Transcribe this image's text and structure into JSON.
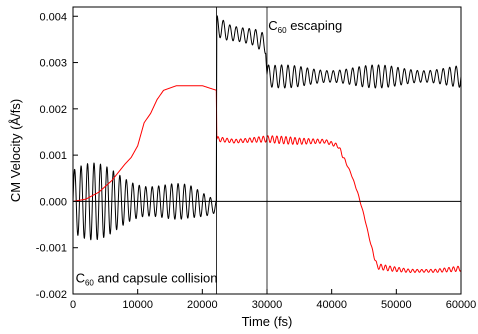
{
  "chart_data": {
    "type": "line",
    "title": "",
    "xlabel": "Time (fs)",
    "ylabel": "CM Velocity (Å/fs)",
    "xlim": [
      0,
      60000
    ],
    "ylim": [
      -0.002,
      0.0042
    ],
    "xticks": [
      "0",
      "10000",
      "20000",
      "30000",
      "40000",
      "50000",
      "60000"
    ],
    "yticks": [
      "-0.002",
      "-0.001",
      "0.000",
      "0.001",
      "0.002",
      "0.003",
      "0.004"
    ],
    "grid": false,
    "reference_lines": {
      "horizontal_y": 0.0,
      "vertical_x": [
        22200,
        30000
      ]
    },
    "annotations": [
      {
        "x": 30200,
        "y": 0.0037,
        "base": "C",
        "sub": "60",
        "rest": " escaping"
      },
      {
        "x": 400,
        "y": -0.00175,
        "base": "C",
        "sub": "60",
        "rest": " and capsule collision"
      }
    ],
    "series": [
      {
        "color": "#000000",
        "oscillation": {
          "period": 1000,
          "envelope": [
            [
              0,
              0.0009
            ],
            [
              10000,
              0.0007
            ],
            [
              14000,
              0.0005
            ],
            [
              22200,
              0.0002
            ],
            [
              22300,
              0.00035
            ],
            [
              30000,
              0.00025
            ]
          ]
        },
        "points": [
          [
            0,
            0.0
          ],
          [
            3000,
            0.0
          ],
          [
            6000,
            0.0
          ],
          [
            9000,
            0.0
          ],
          [
            12000,
            0.0
          ],
          [
            15000,
            0.0
          ],
          [
            18000,
            0.0
          ],
          [
            21000,
            -0.0001
          ],
          [
            22199,
            -0.0001
          ],
          [
            22201,
            0.0038
          ],
          [
            24000,
            0.00365
          ],
          [
            26000,
            0.0036
          ],
          [
            28000,
            0.00355
          ],
          [
            29800,
            0.0034
          ],
          [
            30000,
            0.00275
          ],
          [
            30500,
            0.0027
          ],
          [
            35000,
            0.0027
          ],
          [
            45000,
            0.0027
          ],
          [
            60000,
            0.0027
          ]
        ]
      },
      {
        "color": "#ff0000",
        "oscillation": {
          "period": 700,
          "envelope": [
            [
              0,
              0.0
            ],
            [
              22200,
              0.0
            ],
            [
              22300,
              8e-05
            ],
            [
              41500,
              8e-05
            ],
            [
              42500,
              2e-05
            ],
            [
              46000,
              1e-05
            ],
            [
              47000,
              6e-05
            ],
            [
              60000,
              6e-05
            ]
          ]
        },
        "points": [
          [
            0,
            0.0
          ],
          [
            2000,
            5e-05
          ],
          [
            4000,
            0.0002
          ],
          [
            6000,
            0.00045
          ],
          [
            8000,
            0.0008
          ],
          [
            9000,
            0.00095
          ],
          [
            10000,
            0.0012
          ],
          [
            11000,
            0.0017
          ],
          [
            12000,
            0.0019
          ],
          [
            13000,
            0.0022
          ],
          [
            14000,
            0.0024
          ],
          [
            16000,
            0.0025
          ],
          [
            18000,
            0.0025
          ],
          [
            20000,
            0.0025
          ],
          [
            22199,
            0.0024
          ],
          [
            22201,
            0.00135
          ],
          [
            25000,
            0.0013
          ],
          [
            30000,
            0.00135
          ],
          [
            35000,
            0.0013
          ],
          [
            39000,
            0.0013
          ],
          [
            41000,
            0.0012
          ],
          [
            42000,
            0.0009
          ],
          [
            43000,
            0.0006
          ],
          [
            44000,
            0.0002
          ],
          [
            45000,
            -0.0003
          ],
          [
            46000,
            -0.0009
          ],
          [
            47000,
            -0.0014
          ],
          [
            49000,
            -0.00145
          ],
          [
            52000,
            -0.0015
          ],
          [
            56000,
            -0.0015
          ],
          [
            60000,
            -0.00145
          ]
        ]
      }
    ]
  }
}
